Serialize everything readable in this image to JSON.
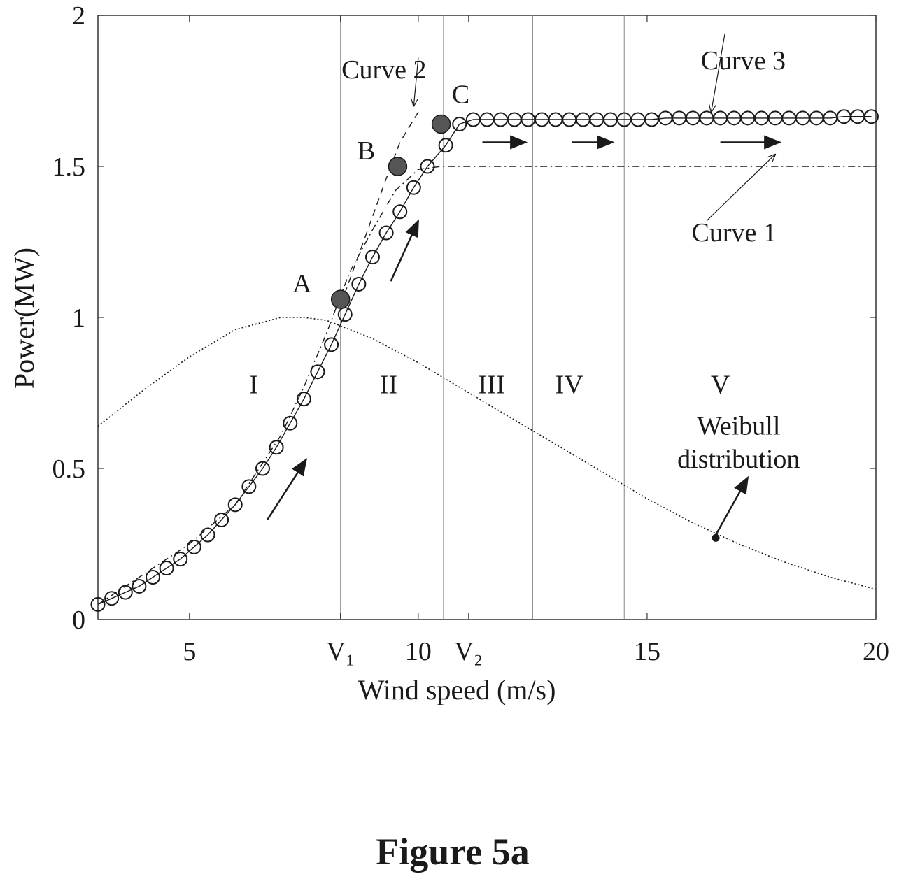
{
  "figure_caption": "Figure 5a",
  "chart_data": {
    "type": "line",
    "xlabel": "Wind speed (m/s)",
    "ylabel": "Power(MW)",
    "xlim": [
      3,
      20
    ],
    "ylim": [
      0,
      2
    ],
    "x_ticks": [
      {
        "value": 5,
        "label": "5"
      },
      {
        "value": 8.3,
        "label": "V₁"
      },
      {
        "value": 10,
        "label": "10"
      },
      {
        "value": 11.1,
        "label": "V₂"
      },
      {
        "value": 15,
        "label": "15"
      },
      {
        "value": 20,
        "label": "20"
      }
    ],
    "y_ticks": [
      {
        "value": 0,
        "label": "0"
      },
      {
        "value": 0.5,
        "label": "0.5"
      },
      {
        "value": 1,
        "label": "1"
      },
      {
        "value": 1.5,
        "label": "1.5"
      },
      {
        "value": 2,
        "label": "2"
      }
    ],
    "grid": false,
    "region_boundaries": [
      8.3,
      10.55,
      12.5,
      14.5
    ],
    "series": [
      {
        "name": "Curve 1",
        "style": "dash-dot",
        "x": [
          3.0,
          4.0,
          5.0,
          6.0,
          7.0,
          7.5,
          8.0,
          8.5,
          9.0,
          9.5,
          10.0,
          10.5,
          11.0,
          12.0,
          14.0,
          16.0,
          18.0,
          20.0
        ],
        "y": [
          0.05,
          0.15,
          0.25,
          0.38,
          0.61,
          0.77,
          0.95,
          1.15,
          1.29,
          1.42,
          1.49,
          1.5,
          1.5,
          1.5,
          1.5,
          1.5,
          1.5,
          1.5
        ]
      },
      {
        "name": "Curve 2",
        "style": "dashed",
        "x": [
          8.3,
          8.8,
          9.3,
          9.6,
          10.0
        ],
        "y": [
          1.04,
          1.25,
          1.46,
          1.58,
          1.68
        ]
      },
      {
        "name": "Curve 3",
        "style": "solid-circles",
        "x": [
          3.0,
          3.3,
          3.6,
          3.9,
          4.2,
          4.5,
          4.8,
          5.1,
          5.4,
          5.7,
          6.0,
          6.3,
          6.6,
          6.9,
          7.2,
          7.5,
          7.8,
          8.1,
          8.4,
          8.7,
          9.0,
          9.3,
          9.6,
          9.9,
          10.2,
          10.6,
          10.9,
          11.2,
          11.5,
          11.8,
          12.1,
          12.4,
          12.7,
          13.0,
          13.3,
          13.6,
          13.9,
          14.2,
          14.5,
          14.8,
          15.1,
          15.4,
          15.7,
          16.0,
          16.3,
          16.6,
          16.9,
          17.2,
          17.5,
          17.8,
          18.1,
          18.4,
          18.7,
          19.0,
          19.3,
          19.6,
          19.9
        ],
        "y": [
          0.05,
          0.07,
          0.09,
          0.11,
          0.14,
          0.17,
          0.2,
          0.24,
          0.28,
          0.33,
          0.38,
          0.44,
          0.5,
          0.57,
          0.65,
          0.73,
          0.82,
          0.91,
          1.01,
          1.11,
          1.2,
          1.28,
          1.35,
          1.43,
          1.5,
          1.57,
          1.64,
          1.655,
          1.655,
          1.655,
          1.655,
          1.655,
          1.655,
          1.655,
          1.655,
          1.655,
          1.655,
          1.655,
          1.655,
          1.655,
          1.655,
          1.66,
          1.66,
          1.66,
          1.66,
          1.66,
          1.66,
          1.66,
          1.66,
          1.66,
          1.66,
          1.66,
          1.66,
          1.66,
          1.665,
          1.665,
          1.665
        ]
      },
      {
        "name": "Weibull distribution",
        "style": "dotted",
        "x": [
          3.0,
          4.0,
          5.0,
          6.0,
          7.0,
          7.5,
          8.0,
          9.0,
          10.0,
          11.0,
          12.0,
          13.0,
          14.0,
          15.0,
          16.0,
          17.0,
          18.0,
          19.0,
          20.0
        ],
        "y": [
          0.64,
          0.76,
          0.87,
          0.96,
          1.0,
          1.0,
          0.99,
          0.93,
          0.85,
          0.76,
          0.67,
          0.58,
          0.49,
          0.4,
          0.32,
          0.25,
          0.19,
          0.14,
          0.1
        ]
      }
    ],
    "marked_points": [
      {
        "label": "A",
        "x": 8.3,
        "y": 1.06
      },
      {
        "label": "B",
        "x": 9.55,
        "y": 1.5
      },
      {
        "label": "C",
        "x": 10.5,
        "y": 1.64
      }
    ],
    "region_labels": [
      {
        "label": "I",
        "x": 6.4,
        "y": 0.8
      },
      {
        "label": "II",
        "x": 9.35,
        "y": 0.8
      },
      {
        "label": "III",
        "x": 11.6,
        "y": 0.8
      },
      {
        "label": "IV",
        "x": 13.3,
        "y": 0.8
      },
      {
        "label": "V",
        "x": 16.6,
        "y": 0.8
      }
    ],
    "annotations": [
      {
        "text": "Curve 1",
        "x": 16.9,
        "y": 1.28
      },
      {
        "text": "Curve 2",
        "x": 9.25,
        "y": 1.82
      },
      {
        "text": "Curve 3",
        "x": 17.1,
        "y": 1.85
      },
      {
        "text": "Weibull",
        "x": 17.0,
        "y": 0.64
      },
      {
        "text": "distribution",
        "x": 17.0,
        "y": 0.53
      }
    ],
    "arrows": [
      {
        "from": [
          6.7,
          0.33
        ],
        "to": [
          7.55,
          0.53
        ]
      },
      {
        "from": [
          9.4,
          1.12
        ],
        "to": [
          10.0,
          1.32
        ]
      },
      {
        "from": [
          11.4,
          1.58
        ],
        "to": [
          12.35,
          1.58
        ]
      },
      {
        "from": [
          13.35,
          1.58
        ],
        "to": [
          14.25,
          1.58
        ]
      },
      {
        "from": [
          16.6,
          1.58
        ],
        "to": [
          17.9,
          1.58
        ]
      },
      {
        "from": [
          16.5,
          0.28
        ],
        "to": [
          17.2,
          0.47
        ]
      }
    ],
    "weibull_marker": {
      "x": 16.5,
      "y": 0.27
    }
  }
}
